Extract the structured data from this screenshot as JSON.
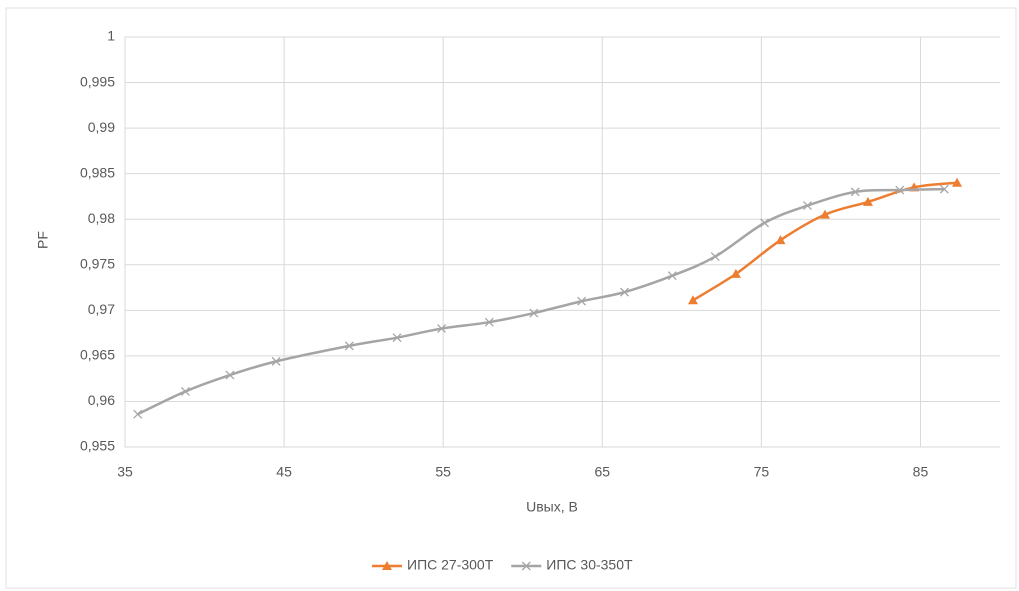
{
  "chart_data": {
    "type": "line",
    "x_label": "Uвых, В",
    "y_label": "PF",
    "xlim": [
      35,
      90
    ],
    "xticks": [
      35,
      45,
      55,
      65,
      75,
      85
    ],
    "ylim": [
      0.955,
      1
    ],
    "yticks": [
      {
        "value": 0.955,
        "label": "0,955"
      },
      {
        "value": 0.96,
        "label": "0,96"
      },
      {
        "value": 0.965,
        "label": "0,965"
      },
      {
        "value": 0.97,
        "label": "0,97"
      },
      {
        "value": 0.975,
        "label": "0,975"
      },
      {
        "value": 0.98,
        "label": "0,98"
      },
      {
        "value": 0.985,
        "label": "0,985"
      },
      {
        "value": 0.99,
        "label": "0,99"
      },
      {
        "value": 0.995,
        "label": "0,995"
      },
      1
    ],
    "grid": true,
    "legend": "bottom",
    "series": [
      {
        "name": "ИПС 27-300Т",
        "color": "#ed7d31",
        "marker": "triangle",
        "x": [
          70.7,
          73.4,
          76.2,
          79.0,
          81.7,
          84.6,
          87.3
        ],
        "values": [
          0.9711,
          0.974,
          0.9777,
          0.9805,
          0.9819,
          0.9835,
          0.984
        ]
      },
      {
        "name": "ИПС 30-350Т",
        "color": "#a5a5a5",
        "marker": "x",
        "x": [
          35.8,
          38.8,
          41.6,
          44.5,
          49.1,
          52.1,
          54.9,
          57.9,
          60.7,
          63.7,
          66.4,
          69.4,
          72.1,
          75.2,
          77.9,
          80.9,
          83.7,
          86.5
        ],
        "values": [
          0.9586,
          0.9611,
          0.9629,
          0.9644,
          0.9661,
          0.967,
          0.968,
          0.9687,
          0.9697,
          0.971,
          0.972,
          0.9738,
          0.9759,
          0.9796,
          0.9815,
          0.983,
          0.9832,
          0.9833
        ]
      }
    ]
  }
}
